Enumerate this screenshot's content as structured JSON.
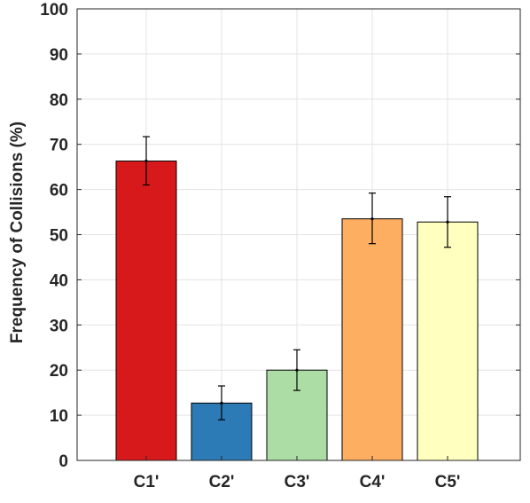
{
  "chart_data": {
    "type": "bar",
    "title": "",
    "xlabel": "",
    "ylabel": "Frequency of Collisions (%)",
    "categories": [
      "C1'",
      "C2'",
      "C3'",
      "C4'",
      "C5'"
    ],
    "values": [
      66.3,
      12.7,
      20.0,
      53.5,
      52.8
    ],
    "error_low": [
      61.0,
      9.0,
      15.5,
      48.0,
      47.2
    ],
    "error_high": [
      71.7,
      16.5,
      24.5,
      59.2,
      58.4
    ],
    "bar_colors": [
      "#d7191c",
      "#2c7bb6",
      "#abdda4",
      "#fdae61",
      "#ffffbf"
    ],
    "ylim": [
      0,
      100
    ],
    "yticks": [
      0,
      10,
      20,
      30,
      40,
      50,
      60,
      70,
      80,
      90,
      100
    ],
    "grid": true,
    "legend": "none"
  }
}
